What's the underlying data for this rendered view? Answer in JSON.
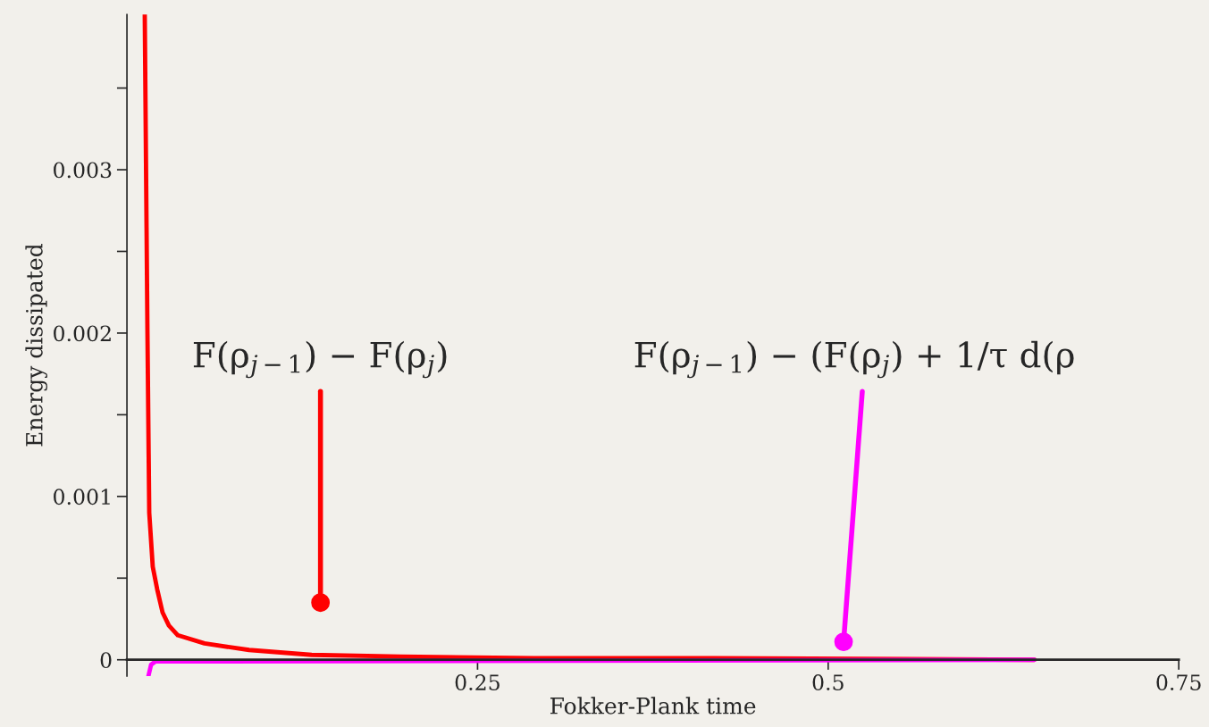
{
  "chart_data": {
    "type": "line",
    "xlabel": "Fokker-Plank time",
    "ylabel": "Energy dissipated",
    "xlim": [
      0,
      0.75
    ],
    "xticks": [
      0.25,
      0.5,
      0.75
    ],
    "ylim": [
      -0.0001,
      0.00395
    ],
    "yticks": [
      {
        "value": 0,
        "label": "0"
      },
      {
        "value": 0.0005,
        "label": null
      },
      {
        "value": 0.001,
        "label": "0.001"
      },
      {
        "value": 0.0015,
        "label": null
      },
      {
        "value": 0.002,
        "label": "0.002"
      },
      {
        "value": 0.0025,
        "label": null
      },
      {
        "value": 0.003,
        "label": "0.003"
      },
      {
        "value": 0.0035,
        "label": null
      }
    ],
    "grid": false,
    "legend": false,
    "line_style": "solid",
    "marker": "none",
    "series": [
      {
        "color": "#ff0000",
        "x": [
          0.0127,
          0.0146,
          0.0159,
          0.0184,
          0.0216,
          0.0254,
          0.0299,
          0.0363,
          0.0553,
          0.0871,
          0.1317,
          0.195,
          0.29,
          0.418,
          0.647
        ],
        "values": [
          0.00395,
          0.00202,
          0.0009,
          0.00057,
          0.00043,
          0.00029,
          0.00021,
          0.00015,
          0.0001,
          6e-05,
          3e-05,
          2e-05,
          1e-05,
          1e-05,
          0
        ]
      },
      {
        "color": "#ff00ff",
        "x": [
          0.0153,
          0.0172,
          0.0204,
          0.0363,
          0.647
        ],
        "values": [
          -0.0001,
          -3e-05,
          -1e-05,
          -1e-05,
          0
        ]
      }
    ],
    "annotations": [
      {
        "text": "F(ρ$_{j−1}$) − F(ρ$_{j}$)",
        "x": 0.138,
        "y": 0.00035
      },
      {
        "text": "F(ρ$_{j−1}$) − (F(ρ$_{j}$) + 1/τ d(ρ",
        "x": 0.511,
        "y": 0.00011
      }
    ]
  }
}
